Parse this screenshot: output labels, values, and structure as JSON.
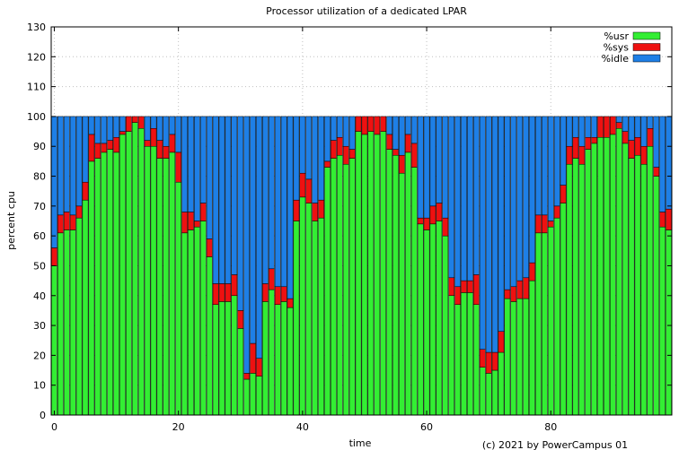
{
  "chart_data": {
    "type": "bar",
    "stacked": true,
    "title": "Processor utilization of a dedicated LPAR",
    "xlabel": "time",
    "ylabel": "percent cpu",
    "footer": "(c) 2021 by PowerCampus 01",
    "xlim": [
      -0.5,
      99.5
    ],
    "ylim": [
      0,
      130
    ],
    "x_ticks": [
      0,
      20,
      40,
      60,
      80
    ],
    "y_ticks": [
      0,
      10,
      20,
      30,
      40,
      50,
      60,
      70,
      80,
      90,
      100,
      110,
      120,
      130
    ],
    "grid": true,
    "legend_position": "top-right",
    "x": [
      0,
      1,
      2,
      3,
      4,
      5,
      6,
      7,
      8,
      9,
      10,
      11,
      12,
      13,
      14,
      15,
      16,
      17,
      18,
      19,
      20,
      21,
      22,
      23,
      24,
      25,
      26,
      27,
      28,
      29,
      30,
      31,
      32,
      33,
      34,
      35,
      36,
      37,
      38,
      39,
      40,
      41,
      42,
      43,
      44,
      45,
      46,
      47,
      48,
      49,
      50,
      51,
      52,
      53,
      54,
      55,
      56,
      57,
      58,
      59,
      60,
      61,
      62,
      63,
      64,
      65,
      66,
      67,
      68,
      69,
      70,
      71,
      72,
      73,
      74,
      75,
      76,
      77,
      78,
      79,
      80,
      81,
      82,
      83,
      84,
      85,
      86,
      87,
      88,
      89,
      90,
      91,
      92,
      93,
      94,
      95,
      96,
      97,
      98,
      99
    ],
    "series": [
      {
        "name": "%usr",
        "color": "#33ee33",
        "values": [
          50,
          61,
          62,
          62,
          66,
          72,
          85,
          86,
          88,
          89,
          88,
          94,
          95,
          98,
          96,
          90,
          90,
          86,
          86,
          88,
          78,
          61,
          62,
          63,
          65,
          53,
          37,
          38,
          38,
          40,
          29,
          12,
          14,
          13,
          38,
          42,
          37,
          38,
          36,
          65,
          73,
          71,
          65,
          66,
          83,
          86,
          87,
          84,
          86,
          95,
          94,
          95,
          94,
          95,
          89,
          87,
          81,
          88,
          83,
          64,
          62,
          64,
          65,
          60,
          40,
          37,
          41,
          41,
          37,
          16,
          14,
          15,
          21,
          39,
          38,
          39,
          39,
          45,
          61,
          61,
          63,
          66,
          71,
          84,
          86,
          84,
          89,
          91,
          93,
          93,
          94,
          96,
          91,
          86,
          87,
          84,
          90,
          80,
          63,
          62
        ]
      },
      {
        "name": "%sys",
        "color": "#ee1111",
        "values": [
          6,
          6,
          6,
          5,
          4,
          6,
          9,
          5,
          3,
          3,
          5,
          1,
          5,
          2,
          4,
          2,
          6,
          6,
          4,
          6,
          10,
          7,
          6,
          2,
          6,
          6,
          7,
          6,
          6,
          7,
          6,
          2,
          10,
          6,
          6,
          7,
          6,
          5,
          3,
          7,
          8,
          8,
          6,
          6,
          2,
          6,
          6,
          6,
          3,
          5,
          6,
          5,
          6,
          5,
          5,
          2,
          6,
          6,
          8,
          2,
          4,
          6,
          6,
          6,
          6,
          6,
          4,
          4,
          10,
          6,
          7,
          6,
          7,
          3,
          5,
          6,
          7,
          6,
          6,
          6,
          2,
          4,
          6,
          6,
          7,
          6,
          4,
          2,
          7,
          7,
          6,
          2,
          4,
          6,
          6,
          6,
          6,
          3,
          5,
          7
        ]
      },
      {
        "name": "%idle",
        "color": "#1e7fe6",
        "values": [
          44,
          33,
          32,
          33,
          30,
          22,
          6,
          9,
          9,
          8,
          7,
          5,
          0,
          0,
          0,
          8,
          4,
          8,
          10,
          6,
          12,
          32,
          32,
          35,
          29,
          41,
          56,
          56,
          56,
          53,
          65,
          86,
          76,
          81,
          56,
          51,
          57,
          57,
          61,
          28,
          19,
          21,
          29,
          28,
          15,
          8,
          7,
          10,
          11,
          0,
          0,
          0,
          0,
          0,
          6,
          11,
          13,
          6,
          9,
          34,
          34,
          30,
          29,
          34,
          54,
          57,
          55,
          55,
          53,
          78,
          79,
          79,
          72,
          58,
          57,
          55,
          54,
          49,
          33,
          33,
          35,
          30,
          23,
          10,
          7,
          10,
          7,
          7,
          0,
          0,
          0,
          2,
          5,
          8,
          7,
          10,
          4,
          17,
          32,
          31
        ]
      }
    ]
  }
}
